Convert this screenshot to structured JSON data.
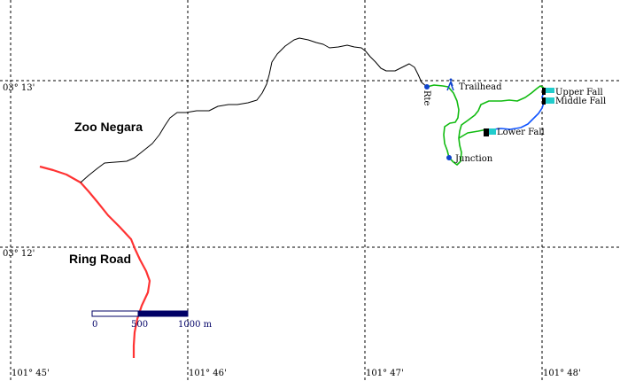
{
  "grid": {
    "lat_labels": [
      "03° 13'",
      "03° 12'"
    ],
    "lon_labels": [
      "101° 45'",
      "101° 46'",
      "101° 47'",
      "101° 48'"
    ]
  },
  "places": {
    "zoo": "Zoo Negara",
    "ring_road": "Ring Road",
    "trailhead": "Trailhead",
    "junction": "Junction",
    "upper_fall": "Upper Fall",
    "middle_fall": "Middle Fall",
    "lower_fall": "Lower Fall",
    "rotated_label": "Rte"
  },
  "scale_bar": {
    "tick_0": "0",
    "tick_500": "500",
    "tick_1000": "1000 m"
  },
  "colors": {
    "road": "#ff3333",
    "trail": "#11bb11",
    "stream": "#1155ff",
    "access_path": "#000000",
    "waypoint": "#1144cc",
    "scale": "#000066"
  },
  "icons": {
    "trailhead": "hiker-icon",
    "waterfall": "waterfall-icon",
    "waypoint": "circle-icon"
  }
}
